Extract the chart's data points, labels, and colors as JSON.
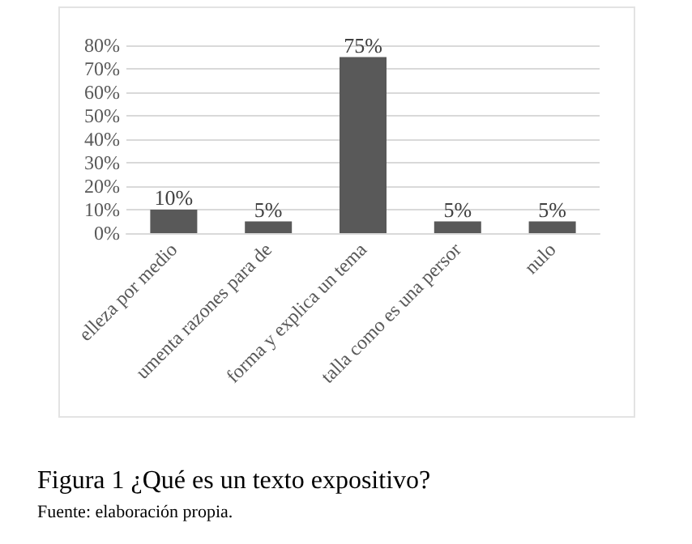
{
  "chart_data": {
    "type": "bar",
    "title": "Figura 1 ¿Qué es un texto expositivo?",
    "annotations": [
      "Fuente: elaboración propia."
    ],
    "categories": [
      "elleza por medio",
      "umenta razones para de",
      "forma y explica un tema",
      "talla como es una persor",
      "nulo"
    ],
    "values": [
      10,
      5,
      75,
      5,
      5
    ],
    "value_labels": [
      "10%",
      "5%",
      "75%",
      "5%",
      "5%"
    ],
    "color": "#595959",
    "ylim": [
      0,
      80
    ],
    "yticks": [
      {
        "value": 0,
        "label": "0%"
      },
      {
        "value": 10,
        "label": "10%"
      },
      {
        "value": 20,
        "label": "20%"
      },
      {
        "value": 30,
        "label": "30%"
      },
      {
        "value": 40,
        "label": "40%"
      },
      {
        "value": 50,
        "label": "50%"
      },
      {
        "value": 60,
        "label": "60%"
      },
      {
        "value": 70,
        "label": "70%"
      },
      {
        "value": 80,
        "label": "80%"
      }
    ],
    "grid": "y"
  }
}
